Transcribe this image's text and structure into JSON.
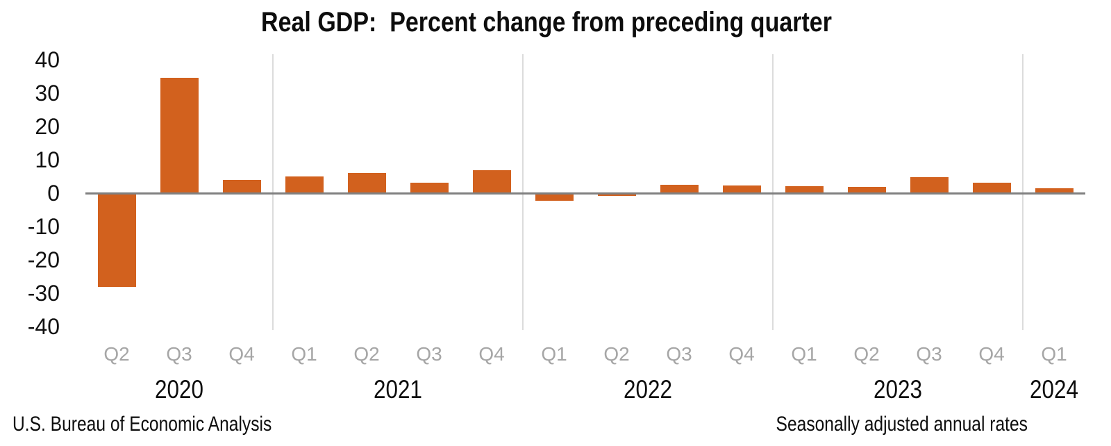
{
  "title": "Real GDP:  Percent change from preceding quarter",
  "footer": {
    "left": "U.S. Bureau of Economic Analysis",
    "right": "Seasonally adjusted annual rates"
  },
  "chart_data": {
    "type": "bar",
    "title": "Real GDP:  Percent change from preceding quarter",
    "series_name": "Real GDP, percent change from preceding quarter",
    "quarters": [
      "Q2",
      "Q3",
      "Q4",
      "Q1",
      "Q2",
      "Q3",
      "Q4",
      "Q1",
      "Q2",
      "Q3",
      "Q4",
      "Q1",
      "Q2",
      "Q3",
      "Q4",
      "Q1"
    ],
    "values": [
      -28.0,
      34.8,
      4.2,
      5.2,
      6.2,
      3.3,
      7.0,
      -2.0,
      -0.6,
      2.7,
      2.6,
      2.2,
      2.1,
      4.9,
      3.4,
      1.6
    ],
    "year_groups": [
      {
        "label": "2020",
        "count": 3
      },
      {
        "label": "2021",
        "count": 4
      },
      {
        "label": "2022",
        "count": 4
      },
      {
        "label": "2023",
        "count": 4
      },
      {
        "label": "2024",
        "count": 1
      }
    ],
    "y_ticks": [
      40,
      30,
      20,
      10,
      0,
      -10,
      -20,
      -30,
      -40
    ],
    "ylim": [
      -40,
      40
    ],
    "grid": "vertical separators between years; single horizontal zero axis; no legend",
    "colors": {
      "bar": "#D2611E",
      "zero_axis": "#808080",
      "year_separator": "#DCDCDC",
      "quarter_label": "#A6A6A6",
      "text": "#0D0D0D"
    }
  }
}
